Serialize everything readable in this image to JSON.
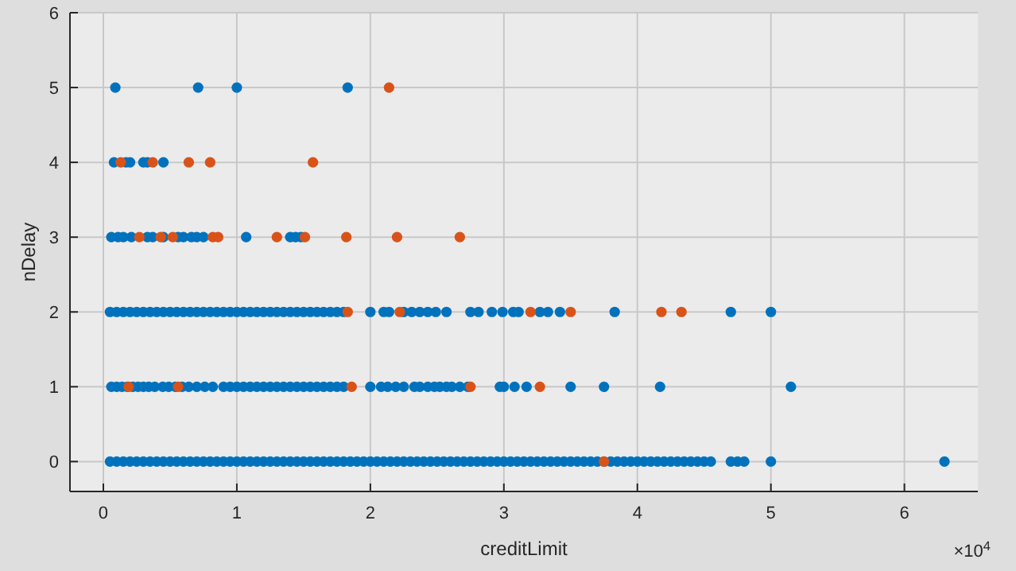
{
  "chart_data": {
    "type": "scatter",
    "xlabel": "creditLimit",
    "ylabel": "nDelay",
    "xlim": [
      -0.25,
      6.55
    ],
    "ylim": [
      -0.4,
      6
    ],
    "xticks": [
      0,
      1,
      2,
      3,
      4,
      5,
      6
    ],
    "yticks": [
      0,
      1,
      2,
      3,
      4,
      5,
      6
    ],
    "grid": true,
    "marker": "circle",
    "annotations": [
      "×10$^{4}$"
    ],
    "series": [
      {
        "color": "#0072bd",
        "x": [
          0.05,
          0.1,
          0.15,
          0.2,
          0.25,
          0.3,
          0.35,
          0.4,
          0.45,
          0.5,
          0.55,
          0.6,
          0.65,
          0.7,
          0.75,
          0.8,
          0.85,
          0.9,
          0.95,
          1.0,
          1.05,
          1.1,
          1.15,
          1.2,
          1.25,
          1.3,
          1.35,
          1.4,
          1.45,
          1.5,
          1.55,
          1.6,
          1.65,
          1.7,
          1.75,
          1.8,
          1.85,
          1.9,
          1.95,
          2.0,
          2.05,
          2.1,
          2.15,
          2.2,
          2.25,
          2.3,
          2.35,
          2.4,
          2.45,
          2.5,
          2.55,
          2.6,
          2.65,
          2.7,
          2.75,
          2.8,
          2.85,
          2.9,
          2.95,
          3.0,
          3.05,
          3.1,
          3.15,
          3.2,
          3.25,
          3.3,
          3.35,
          3.4,
          3.45,
          3.5,
          3.55,
          3.6,
          3.65,
          3.7,
          3.75,
          3.8,
          3.85,
          3.9,
          3.95,
          4.0,
          4.05,
          4.1,
          4.15,
          4.2,
          4.25,
          4.3,
          4.35,
          4.4,
          4.45,
          4.5,
          4.55,
          4.7,
          4.75,
          4.8,
          5.0,
          6.3,
          0.06,
          0.1,
          0.14,
          0.18,
          0.22,
          0.26,
          0.3,
          0.34,
          0.385,
          0.445,
          0.49,
          0.54,
          0.59,
          0.64,
          0.7,
          0.76,
          0.82,
          0.9,
          0.95,
          1.0,
          1.05,
          1.1,
          1.15,
          1.2,
          1.25,
          1.3,
          1.35,
          1.4,
          1.45,
          1.5,
          1.55,
          1.6,
          1.65,
          1.7,
          1.75,
          1.8,
          2.0,
          2.08,
          2.13,
          2.19,
          2.25,
          2.33,
          2.37,
          2.43,
          2.48,
          2.52,
          2.57,
          2.61,
          2.67,
          2.73,
          2.97,
          3.0,
          3.08,
          3.17,
          3.5,
          3.75,
          4.17,
          5.15,
          0.05,
          0.1,
          0.15,
          0.2,
          0.25,
          0.3,
          0.35,
          0.4,
          0.45,
          0.5,
          0.55,
          0.6,
          0.65,
          0.7,
          0.75,
          0.8,
          0.85,
          0.9,
          0.95,
          1.0,
          1.05,
          1.1,
          1.15,
          1.2,
          1.25,
          1.3,
          1.35,
          1.4,
          1.45,
          1.5,
          1.55,
          1.6,
          1.65,
          1.7,
          1.75,
          1.8,
          2.0,
          2.1,
          2.14,
          2.25,
          2.31,
          2.37,
          2.43,
          2.49,
          2.57,
          2.75,
          2.81,
          2.91,
          2.99,
          3.07,
          3.11,
          3.27,
          3.33,
          3.42,
          3.83,
          4.7,
          5.0,
          0.06,
          0.11,
          0.15,
          0.21,
          0.33,
          0.37,
          0.45,
          0.56,
          0.6,
          0.66,
          0.7,
          0.75,
          1.07,
          1.4,
          1.44,
          1.48,
          0.08,
          0.17,
          0.2,
          0.3,
          0.33,
          0.45,
          0.09,
          0.71,
          1.0,
          1.83
        ],
        "values": [
          0,
          0,
          0,
          0,
          0,
          0,
          0,
          0,
          0,
          0,
          0,
          0,
          0,
          0,
          0,
          0,
          0,
          0,
          0,
          0,
          0,
          0,
          0,
          0,
          0,
          0,
          0,
          0,
          0,
          0,
          0,
          0,
          0,
          0,
          0,
          0,
          0,
          0,
          0,
          0,
          0,
          0,
          0,
          0,
          0,
          0,
          0,
          0,
          0,
          0,
          0,
          0,
          0,
          0,
          0,
          0,
          0,
          0,
          0,
          0,
          0,
          0,
          0,
          0,
          0,
          0,
          0,
          0,
          0,
          0,
          0,
          0,
          0,
          0,
          0,
          0,
          0,
          0,
          0,
          0,
          0,
          0,
          0,
          0,
          0,
          0,
          0,
          0,
          0,
          0,
          0,
          0,
          0,
          0,
          0,
          0,
          1,
          1,
          1,
          1,
          1,
          1,
          1,
          1,
          1,
          1,
          1,
          1,
          1,
          1,
          1,
          1,
          1,
          1,
          1,
          1,
          1,
          1,
          1,
          1,
          1,
          1,
          1,
          1,
          1,
          1,
          1,
          1,
          1,
          1,
          1,
          1,
          1,
          1,
          1,
          1,
          1,
          1,
          1,
          1,
          1,
          1,
          1,
          1,
          1,
          1,
          1,
          1,
          1,
          1,
          1,
          1,
          1,
          1,
          2,
          2,
          2,
          2,
          2,
          2,
          2,
          2,
          2,
          2,
          2,
          2,
          2,
          2,
          2,
          2,
          2,
          2,
          2,
          2,
          2,
          2,
          2,
          2,
          2,
          2,
          2,
          2,
          2,
          2,
          2,
          2,
          2,
          2,
          2,
          2,
          2,
          2,
          2,
          2,
          2,
          2,
          2,
          2,
          2,
          2,
          2,
          2,
          2,
          2,
          2,
          2,
          2,
          2,
          2,
          2,
          2,
          3,
          3,
          3,
          3,
          3,
          3,
          3,
          3,
          3,
          3,
          3,
          3,
          3,
          3,
          3,
          3,
          4,
          4,
          4,
          4,
          4,
          4,
          5,
          5,
          5,
          5
        ]
      },
      {
        "color": "#d95319",
        "x": [
          3.75,
          0.19,
          0.56,
          1.86,
          2.75,
          3.27,
          1.83,
          2.22,
          3.2,
          3.5,
          4.18,
          4.33,
          0.27,
          0.43,
          0.52,
          0.82,
          0.86,
          1.3,
          1.51,
          1.82,
          2.2,
          2.67,
          0.13,
          0.37,
          0.64,
          0.8,
          1.57,
          2.14
        ],
        "values": [
          0,
          1,
          1,
          1,
          1,
          1,
          2,
          2,
          2,
          2,
          2,
          2,
          3,
          3,
          3,
          3,
          3,
          3,
          3,
          3,
          3,
          3,
          4,
          4,
          4,
          4,
          4,
          5
        ]
      }
    ]
  }
}
